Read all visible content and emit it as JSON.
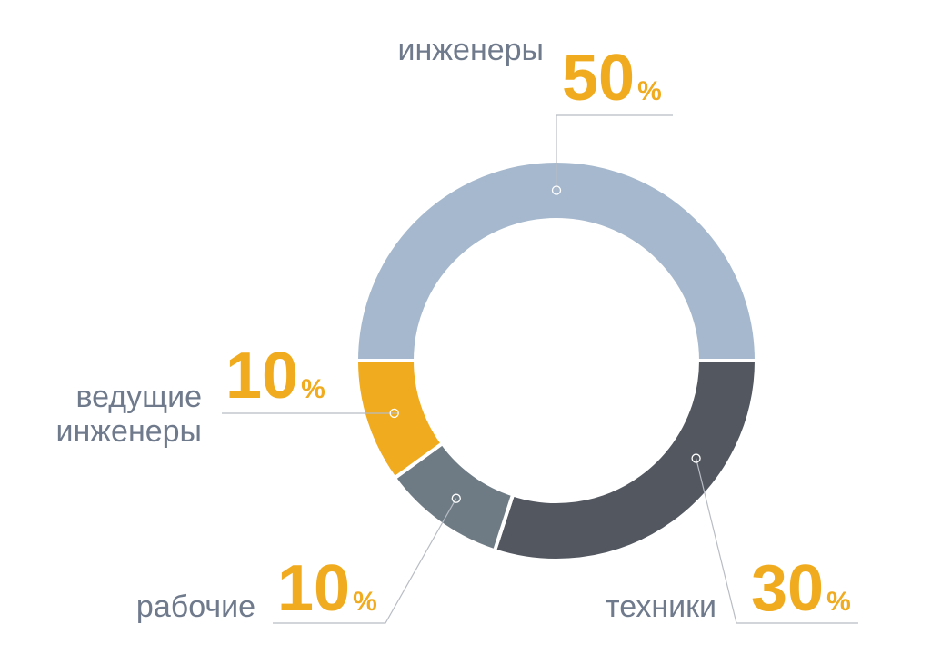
{
  "chart_data": {
    "type": "pie",
    "donut": true,
    "unit_symbol": "%",
    "start_angle_deg": 180,
    "direction": "clockwise",
    "slices": [
      {
        "label": "инженеры",
        "value": 50,
        "color": "#a5b8cd"
      },
      {
        "label": "техники",
        "value": 30,
        "color": "#525760"
      },
      {
        "label": "рабочие",
        "value": 10,
        "color": "#6e7b85"
      },
      {
        "label": "ведущие инженеры",
        "label_lines": [
          "ведущие",
          "инженеры"
        ],
        "value": 10,
        "color": "#f0ab1e"
      }
    ]
  },
  "colors": {
    "label_text": "#6f7a8c",
    "percent_text": "#f0ab1e",
    "leader_line": "#b8bcc4",
    "background": "#ffffff"
  }
}
